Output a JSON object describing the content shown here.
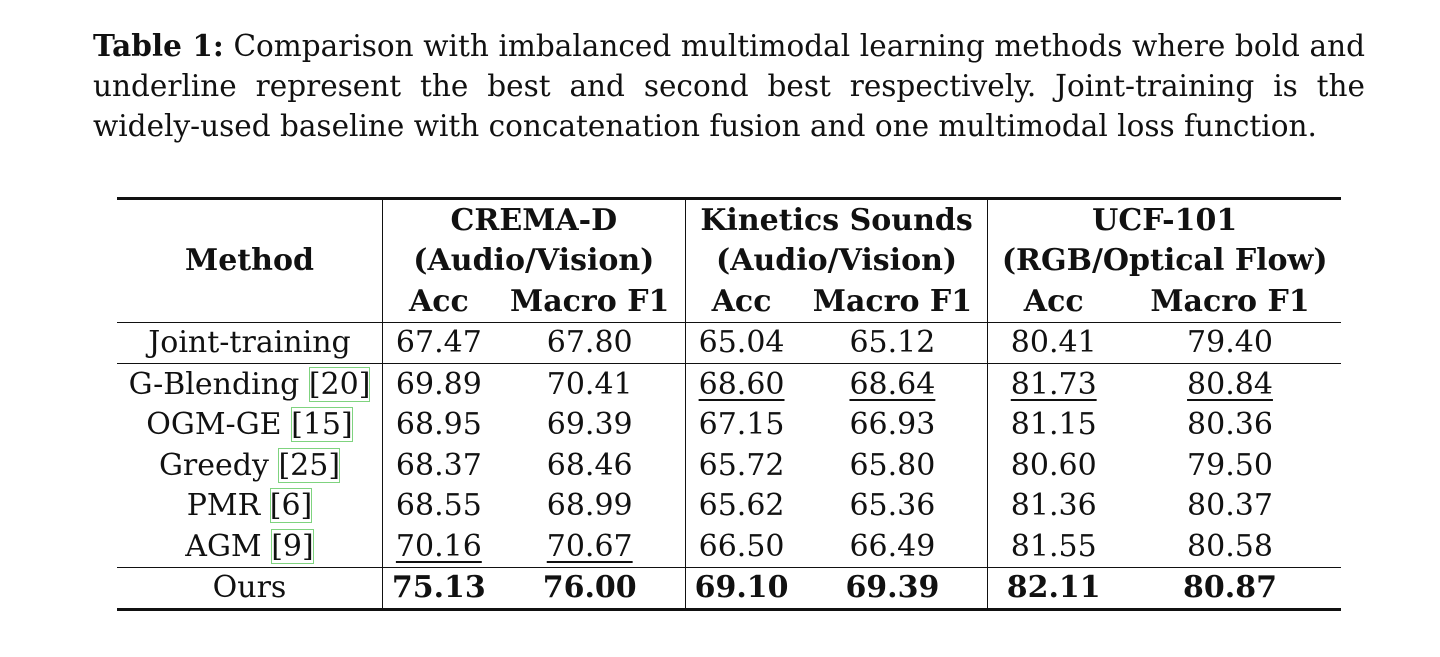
{
  "caption": {
    "label": "Table 1:",
    "text": "Comparison with imbalanced multimodal learning methods where bold and underline represent the best and second best respectively. Joint-training is the widely-used baseline with concatenation fusion and one multimodal loss function."
  },
  "table": {
    "method_header": "Method",
    "datasets": [
      {
        "name": "CREMA-D",
        "modalities": "(Audio/Vision)"
      },
      {
        "name": "Kinetics Sounds",
        "modalities": "(Audio/Vision)"
      },
      {
        "name": "UCF-101",
        "modalities": "(RGB/Optical Flow)"
      }
    ],
    "metric_acc": "Acc",
    "metric_f1": "Macro F1",
    "rows": [
      {
        "method": "Joint-training",
        "cite": "",
        "values": [
          "67.47",
          "67.80",
          "65.04",
          "65.12",
          "80.41",
          "79.40"
        ]
      },
      {
        "method": "G-Blending ",
        "cite": "[20]",
        "values": [
          "69.89",
          "70.41",
          "68.60",
          "68.64",
          "81.73",
          "80.84"
        ]
      },
      {
        "method": "OGM-GE ",
        "cite": "[15]",
        "values": [
          "68.95",
          "69.39",
          "67.15",
          "66.93",
          "81.15",
          "80.36"
        ]
      },
      {
        "method": "Greedy ",
        "cite": "[25]",
        "values": [
          "68.37",
          "68.46",
          "65.72",
          "65.80",
          "80.60",
          "79.50"
        ]
      },
      {
        "method": "PMR ",
        "cite": "[6]",
        "values": [
          "68.55",
          "68.99",
          "65.62",
          "65.36",
          "81.36",
          "80.37"
        ]
      },
      {
        "method": "AGM ",
        "cite": "[9]",
        "values": [
          "70.16",
          "70.67",
          "66.50",
          "66.49",
          "81.55",
          "80.58"
        ]
      },
      {
        "method": "Ours",
        "cite": "",
        "values": [
          "75.13",
          "76.00",
          "69.10",
          "69.39",
          "82.11",
          "80.87"
        ]
      }
    ]
  }
}
